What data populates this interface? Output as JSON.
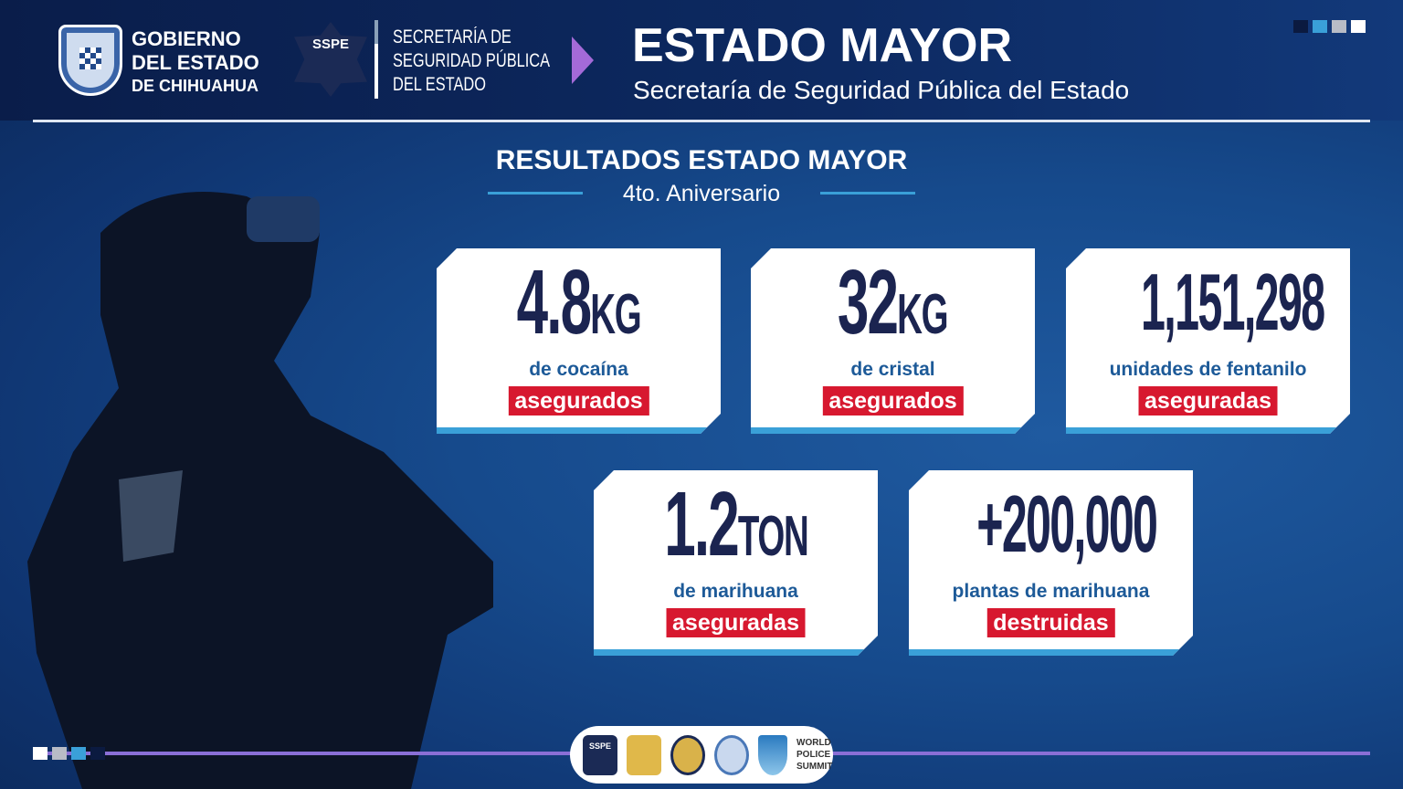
{
  "header": {
    "gov_logo": "Gobierno del Estado de Chihuahua shield",
    "gov_lines": [
      "GOBIERNO",
      "DEL ESTADO",
      "DE CHIHUAHUA"
    ],
    "sspe_badge": "SSPE",
    "secretaria_lines": [
      "SECRETARÍA DE",
      "SEGURIDAD PÚBLICA",
      "DEL ESTADO"
    ],
    "title": "ESTADO MAYOR",
    "subtitle": "Secretaría de Seguridad Pública del Estado"
  },
  "section": {
    "title": "RESULTADOS ESTADO MAYOR",
    "subtitle": "4to. Aniversario"
  },
  "cards": [
    {
      "value": "4.8",
      "unit": "KG",
      "label": "de cocaína",
      "tag": "asegurados"
    },
    {
      "value": "32",
      "unit": "KG",
      "label": "de cristal",
      "tag": "asegurados"
    },
    {
      "value": "1,151,298",
      "unit": "",
      "label": "unidades de fentanilo",
      "tag": "aseguradas"
    },
    {
      "value": "1.2",
      "unit": "TON",
      "label": "de marihuana",
      "tag": "aseguradas"
    },
    {
      "value": "+200,000",
      "unit": "",
      "label": "plantas de marihuana",
      "tag": "destruidas"
    }
  ],
  "footer": {
    "partner_logo_text": [
      "WORLD",
      "POLICE",
      "SUMMIT"
    ],
    "sspe_badge": "SSPE"
  },
  "colors": {
    "navy": "#1b2450",
    "label_blue": "#1d5a98",
    "tag_red": "#d7182f",
    "accent_cyan": "#3aa0d8",
    "purple": "#a46ad8"
  }
}
